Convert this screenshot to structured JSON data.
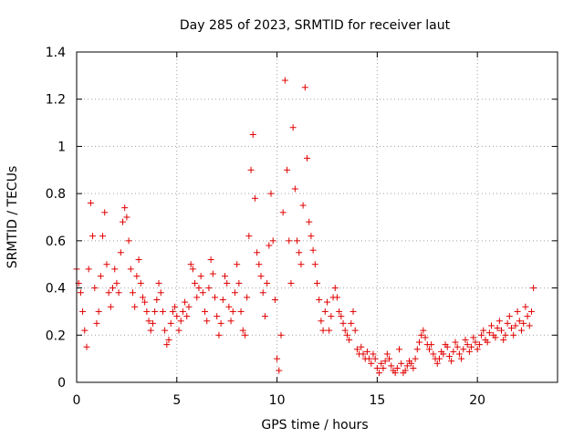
{
  "chart_data": {
    "type": "scatter",
    "title": "Day 285 of 2023, SRMTID for receiver laut",
    "xlabel": "GPS time / hours",
    "ylabel": "SRMTID / TECUs",
    "xlim": [
      0,
      24
    ],
    "ylim": [
      0,
      1.4
    ],
    "x_ticks": [
      0,
      5,
      10,
      15,
      20
    ],
    "x_tick_labels": [
      "0",
      "5",
      "10",
      "15",
      "20"
    ],
    "y_ticks": [
      0,
      0.2,
      0.4,
      0.6,
      0.8,
      1.0,
      1.2,
      1.4
    ],
    "y_tick_labels": [
      "0",
      "0.2",
      "0.4",
      "0.6",
      "0.8",
      "1",
      "1.2",
      "1.4"
    ],
    "grid": true,
    "marker": "plus",
    "color": "#e00000",
    "series": [
      {
        "name": "SRMTID",
        "x": [
          0.0,
          0.1,
          0.2,
          0.3,
          0.4,
          0.5,
          0.6,
          0.7,
          0.8,
          0.9,
          1.0,
          1.1,
          1.2,
          1.3,
          1.4,
          1.5,
          1.6,
          1.7,
          1.8,
          1.9,
          2.0,
          2.1,
          2.2,
          2.3,
          2.4,
          2.5,
          2.6,
          2.7,
          2.8,
          2.9,
          3.0,
          3.1,
          3.2,
          3.3,
          3.4,
          3.5,
          3.6,
          3.7,
          3.8,
          3.9,
          4.0,
          4.1,
          4.2,
          4.3,
          4.4,
          4.5,
          4.6,
          4.7,
          4.8,
          4.9,
          5.0,
          5.1,
          5.2,
          5.3,
          5.4,
          5.5,
          5.6,
          5.7,
          5.8,
          5.9,
          6.0,
          6.1,
          6.2,
          6.3,
          6.4,
          6.5,
          6.6,
          6.7,
          6.8,
          6.9,
          7.0,
          7.1,
          7.2,
          7.3,
          7.4,
          7.5,
          7.6,
          7.7,
          7.8,
          7.9,
          8.0,
          8.1,
          8.2,
          8.3,
          8.4,
          8.5,
          8.6,
          8.7,
          8.8,
          8.9,
          9.0,
          9.1,
          9.2,
          9.3,
          9.4,
          9.5,
          9.6,
          9.7,
          9.8,
          9.9,
          10.0,
          10.1,
          10.2,
          10.3,
          10.4,
          10.5,
          10.6,
          10.7,
          10.8,
          10.9,
          11.0,
          11.1,
          11.2,
          11.3,
          11.4,
          11.5,
          11.6,
          11.7,
          11.8,
          11.9,
          12.0,
          12.1,
          12.2,
          12.3,
          12.4,
          12.5,
          12.6,
          12.7,
          12.8,
          12.9,
          13.0,
          13.1,
          13.2,
          13.3,
          13.4,
          13.5,
          13.6,
          13.7,
          13.8,
          13.9,
          14.0,
          14.1,
          14.2,
          14.3,
          14.4,
          14.5,
          14.6,
          14.7,
          14.8,
          14.9,
          15.0,
          15.1,
          15.2,
          15.3,
          15.4,
          15.5,
          15.6,
          15.7,
          15.8,
          15.9,
          16.0,
          16.1,
          16.2,
          16.3,
          16.4,
          16.5,
          16.6,
          16.7,
          16.8,
          16.9,
          17.0,
          17.1,
          17.2,
          17.3,
          17.4,
          17.5,
          17.6,
          17.7,
          17.8,
          17.9,
          18.0,
          18.1,
          18.2,
          18.3,
          18.4,
          18.5,
          18.6,
          18.7,
          18.8,
          18.9,
          19.0,
          19.1,
          19.2,
          19.3,
          19.4,
          19.5,
          19.6,
          19.7,
          19.8,
          19.9,
          20.0,
          20.1,
          20.2,
          20.3,
          20.4,
          20.5,
          20.6,
          20.7,
          20.8,
          20.9,
          21.0,
          21.1,
          21.2,
          21.3,
          21.4,
          21.5,
          21.6,
          21.7,
          21.8,
          21.9,
          22.0,
          22.1,
          22.2,
          22.3,
          22.4,
          22.5,
          22.6,
          22.7,
          22.8
        ],
        "y": [
          0.48,
          0.42,
          0.38,
          0.3,
          0.22,
          0.15,
          0.48,
          0.76,
          0.62,
          0.4,
          0.25,
          0.3,
          0.45,
          0.62,
          0.72,
          0.5,
          0.38,
          0.32,
          0.4,
          0.48,
          0.42,
          0.38,
          0.55,
          0.68,
          0.74,
          0.7,
          0.6,
          0.48,
          0.38,
          0.32,
          0.45,
          0.52,
          0.42,
          0.36,
          0.34,
          0.3,
          0.26,
          0.22,
          0.25,
          0.3,
          0.35,
          0.42,
          0.38,
          0.3,
          0.22,
          0.16,
          0.18,
          0.25,
          0.3,
          0.32,
          0.28,
          0.22,
          0.26,
          0.3,
          0.34,
          0.28,
          0.32,
          0.5,
          0.48,
          0.42,
          0.36,
          0.4,
          0.45,
          0.38,
          0.3,
          0.26,
          0.4,
          0.52,
          0.46,
          0.36,
          0.28,
          0.2,
          0.25,
          0.35,
          0.45,
          0.42,
          0.32,
          0.26,
          0.3,
          0.38,
          0.5,
          0.42,
          0.3,
          0.22,
          0.2,
          0.36,
          0.62,
          0.9,
          1.05,
          0.78,
          0.55,
          0.5,
          0.45,
          0.38,
          0.28,
          0.42,
          0.58,
          0.8,
          0.6,
          0.35,
          0.1,
          0.05,
          0.2,
          0.72,
          1.28,
          0.9,
          0.6,
          0.42,
          1.08,
          0.82,
          0.6,
          0.55,
          0.5,
          0.75,
          1.25,
          0.95,
          0.68,
          0.62,
          0.56,
          0.5,
          0.42,
          0.35,
          0.26,
          0.22,
          0.3,
          0.34,
          0.22,
          0.28,
          0.36,
          0.4,
          0.36,
          0.3,
          0.28,
          0.25,
          0.22,
          0.2,
          0.18,
          0.25,
          0.3,
          0.22,
          0.14,
          0.12,
          0.15,
          0.12,
          0.1,
          0.13,
          0.1,
          0.08,
          0.12,
          0.1,
          0.06,
          0.04,
          0.08,
          0.06,
          0.09,
          0.12,
          0.1,
          0.07,
          0.05,
          0.04,
          0.06,
          0.14,
          0.08,
          0.04,
          0.05,
          0.07,
          0.09,
          0.08,
          0.06,
          0.1,
          0.14,
          0.17,
          0.2,
          0.22,
          0.19,
          0.16,
          0.14,
          0.16,
          0.12,
          0.1,
          0.08,
          0.1,
          0.13,
          0.12,
          0.16,
          0.15,
          0.11,
          0.09,
          0.13,
          0.17,
          0.15,
          0.12,
          0.1,
          0.14,
          0.18,
          0.16,
          0.13,
          0.15,
          0.19,
          0.17,
          0.14,
          0.16,
          0.2,
          0.22,
          0.18,
          0.17,
          0.21,
          0.24,
          0.2,
          0.19,
          0.23,
          0.26,
          0.22,
          0.18,
          0.2,
          0.25,
          0.28,
          0.23,
          0.2,
          0.24,
          0.3,
          0.26,
          0.22,
          0.25,
          0.32,
          0.28,
          0.24,
          0.3,
          0.4
        ]
      }
    ]
  }
}
